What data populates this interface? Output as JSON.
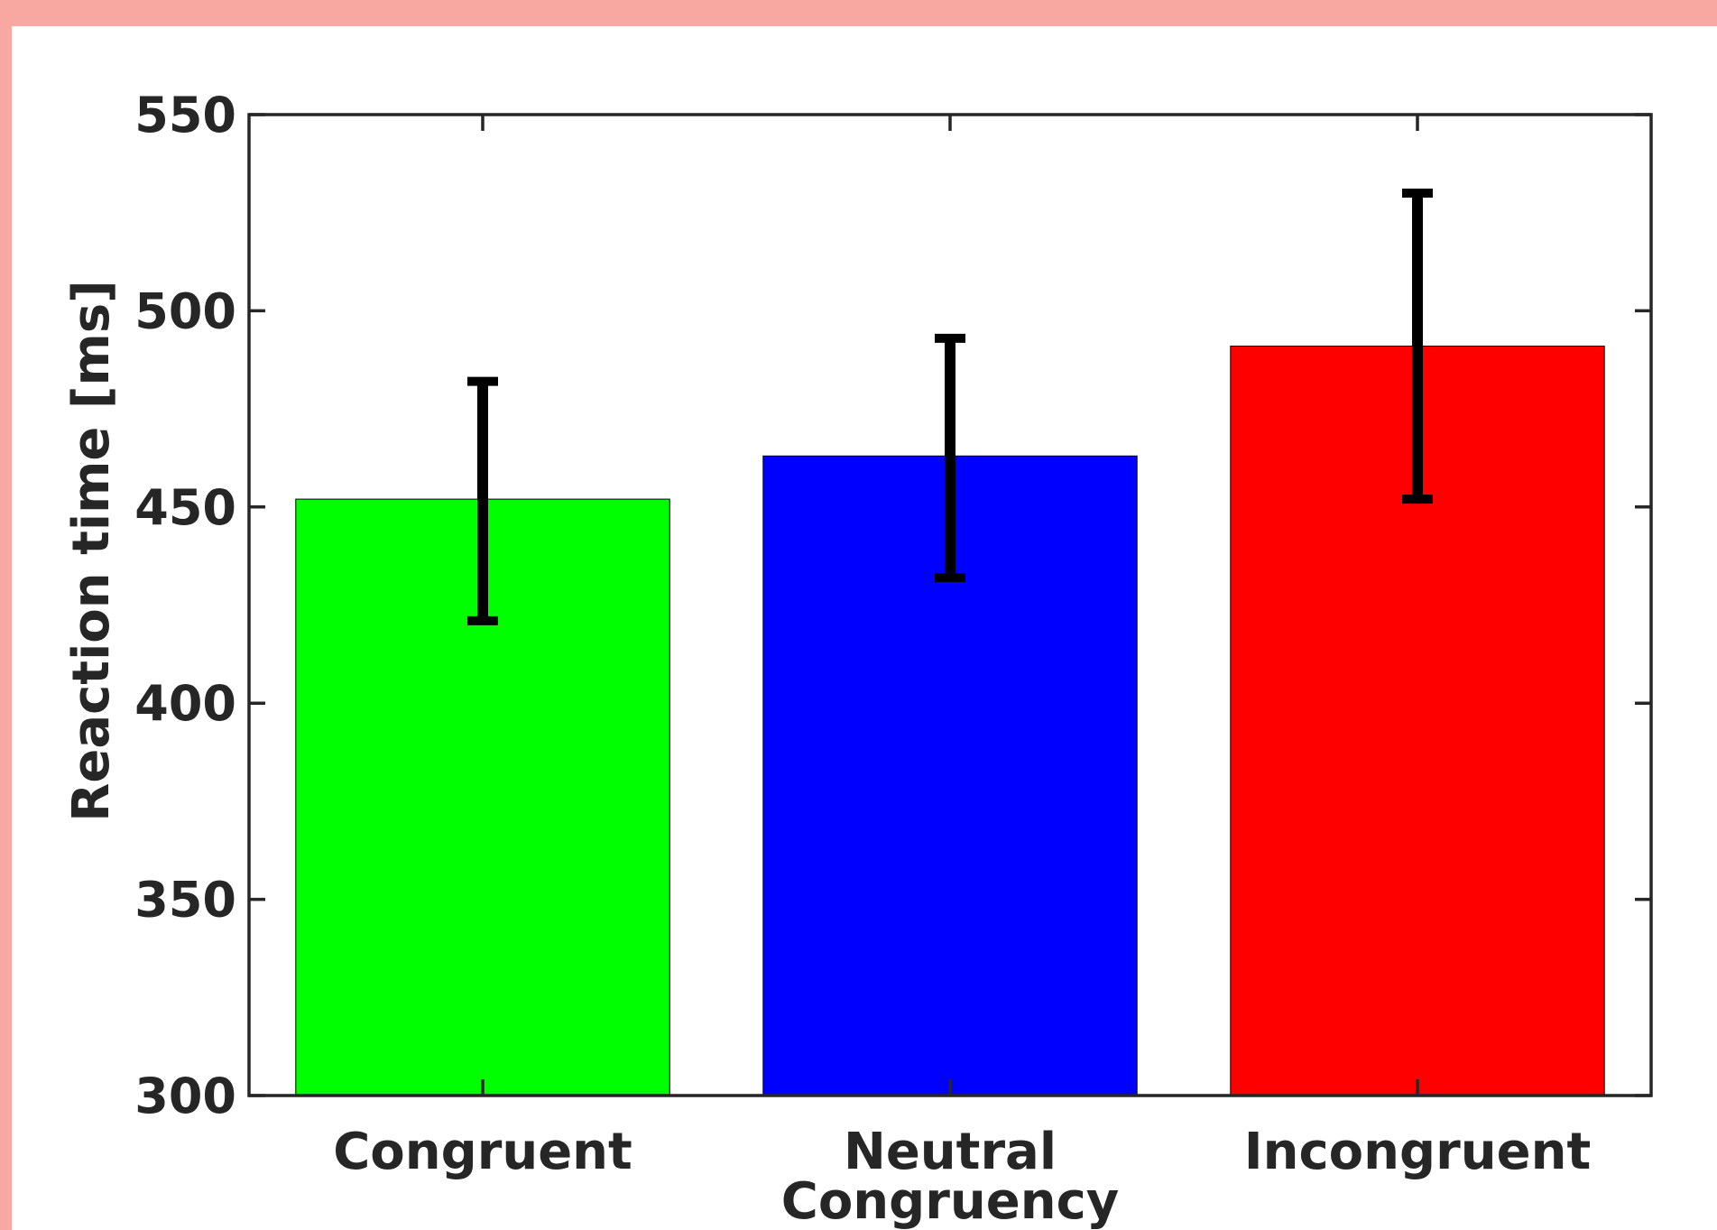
{
  "chart_data": {
    "type": "bar",
    "title": "",
    "xlabel": "Congruency",
    "ylabel": "Reaction time [ms]",
    "categories": [
      "Congruent",
      "Neutral",
      "Incongruent"
    ],
    "values": [
      452,
      463,
      491
    ],
    "error_low": [
      421,
      432,
      452
    ],
    "error_high": [
      482,
      493,
      530
    ],
    "colors": [
      "#00ff00",
      "#0000ff",
      "#ff0000"
    ],
    "ylim": [
      300,
      550
    ],
    "yticks": [
      300,
      350,
      400,
      450,
      500,
      550
    ],
    "ytick_labels": [
      "300",
      "350",
      "400",
      "450",
      "500",
      "550"
    ],
    "grid": false,
    "legend": "none"
  },
  "frame_color": "#f8a7a1",
  "axis_color": "#262626"
}
